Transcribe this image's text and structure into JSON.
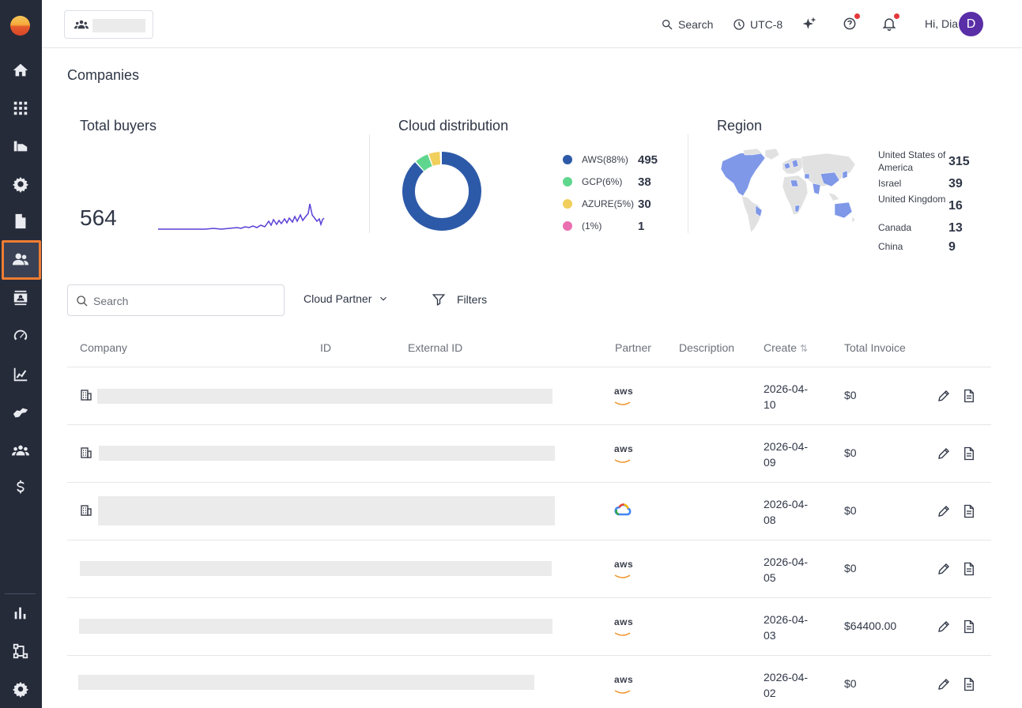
{
  "header": {
    "search_label": "Search",
    "timezone_label": "UTC-8",
    "greeting": "Hi, Dia",
    "avatar_initial": "D"
  },
  "page": {
    "title": "Companies"
  },
  "total_buyers": {
    "title": "Total buyers",
    "value": "564"
  },
  "cloud_distribution": {
    "title": "Cloud distribution",
    "legend": [
      {
        "label": "AWS(88%)",
        "value": "495",
        "color": "#2d5aa8"
      },
      {
        "label": "GCP(6%)",
        "value": "38",
        "color": "#5fd68e"
      },
      {
        "label": "AZURE(5%)",
        "value": "30",
        "color": "#f0cf5c"
      },
      {
        "label": "(1%)",
        "value": "1",
        "color": "#ea6fb0"
      }
    ]
  },
  "region": {
    "title": "Region",
    "items": [
      {
        "name": "United States of America",
        "value": "315"
      },
      {
        "name": "Israel",
        "value": "39"
      },
      {
        "name": "United Kingdom",
        "value": "16"
      },
      {
        "name": "Canada",
        "value": "13"
      },
      {
        "name": "China",
        "value": "9"
      }
    ]
  },
  "filters": {
    "search_placeholder": "Search",
    "cloud_partner_label": "Cloud Partner",
    "filters_label": "Filters"
  },
  "table": {
    "columns": {
      "company": "Company",
      "id": "ID",
      "external_id": "External ID",
      "partner": "Partner",
      "description": "Description",
      "create": "Create",
      "total_invoice": "Total Invoice"
    },
    "rows": [
      {
        "partner": "aws",
        "create": "2026-04-10",
        "invoice": "$0"
      },
      {
        "partner": "aws",
        "create": "2026-04-09",
        "invoice": "$0"
      },
      {
        "partner": "gcp",
        "create": "2026-04-08",
        "invoice": "$0"
      },
      {
        "partner": "aws",
        "create": "2026-04-05",
        "invoice": "$0"
      },
      {
        "partner": "aws",
        "create": "2026-04-03",
        "invoice": "$64400.00"
      },
      {
        "partner": "aws",
        "create": "2026-04-02",
        "invoice": "$0"
      }
    ]
  },
  "icons": {
    "sidebar": [
      "home-icon",
      "apps-grid-icon",
      "product-icon",
      "settings-gear-icon",
      "document-icon",
      "companies-icon",
      "contacts-icon",
      "speedometer-icon",
      "analytics-icon",
      "handshake-icon",
      "teams-icon",
      "dollar-icon",
      "bar-chart-icon",
      "workflow-icon",
      "settings-icon"
    ]
  },
  "colors": {
    "sidebar_bg": "#262b3a",
    "active_outline": "#ef7d33",
    "avatar_bg": "#5a2ea6",
    "sparkline": "#5b3fd6"
  }
}
